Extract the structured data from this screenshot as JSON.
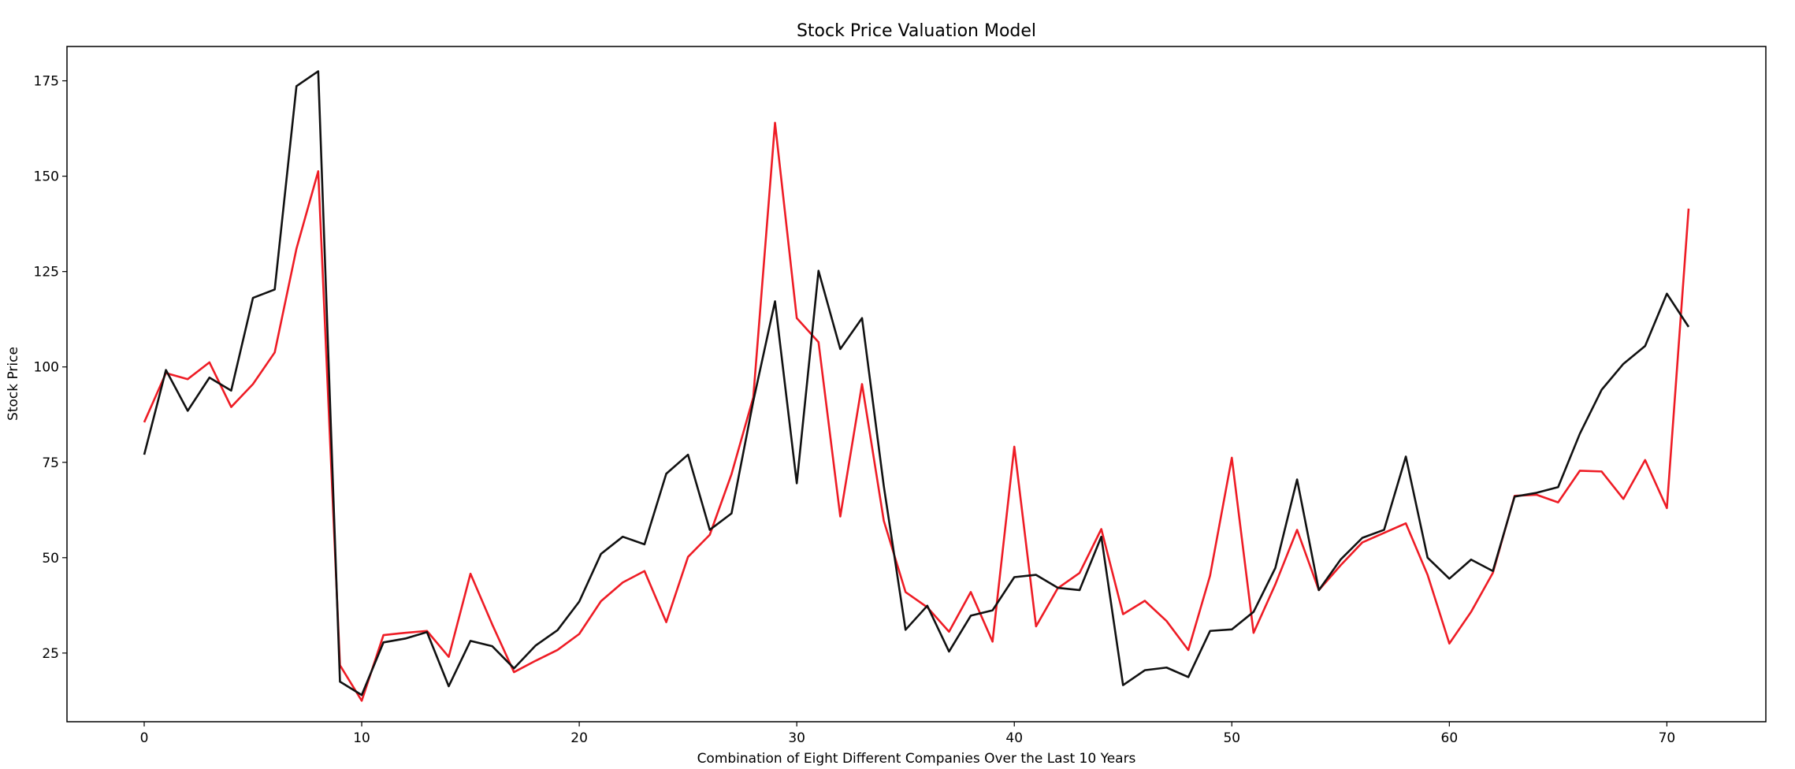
{
  "chart_data": {
    "type": "line",
    "title": "Stock Price Valuation Model",
    "xlabel": "Combination of Eight Different Companies Over the Last 10 Years",
    "ylabel": "Stock Price",
    "xlim": [
      -3.55,
      74.55
    ],
    "ylim": [
      7.0,
      184.0
    ],
    "xticks": [
      0,
      10,
      20,
      30,
      40,
      50,
      60,
      70
    ],
    "yticks": [
      25,
      50,
      75,
      100,
      125,
      150,
      175
    ],
    "grid": false,
    "legend": "none",
    "x": [
      0,
      1,
      2,
      3,
      4,
      5,
      6,
      7,
      8,
      9,
      10,
      11,
      12,
      13,
      14,
      15,
      16,
      17,
      18,
      19,
      20,
      21,
      22,
      23,
      24,
      25,
      26,
      27,
      28,
      29,
      30,
      31,
      32,
      33,
      34,
      35,
      36,
      37,
      38,
      39,
      40,
      41,
      42,
      43,
      44,
      45,
      46,
      47,
      48,
      49,
      50,
      51,
      52,
      53,
      54,
      55,
      56,
      57,
      58,
      59,
      60,
      61,
      62,
      63,
      64,
      65,
      66,
      67,
      68,
      69,
      70,
      71
    ],
    "series": [
      {
        "color": "#ee1c25",
        "values": [
          85.5,
          98.4,
          96.8,
          101.2,
          89.5,
          95.5,
          103.8,
          131.0,
          151.3,
          21.8,
          12.5,
          29.7,
          30.3,
          30.8,
          24.0,
          45.8,
          32.5,
          20.0,
          23.0,
          25.8,
          30.0,
          38.6,
          43.5,
          46.5,
          33.1,
          50.2,
          56.0,
          71.9,
          92.0,
          164.0,
          112.8,
          106.5,
          60.8,
          95.5,
          59.7,
          41.0,
          37.0,
          30.6,
          41.0,
          28.0,
          79.1,
          32.0,
          42.0,
          46.0,
          57.5,
          35.2,
          38.7,
          33.4,
          25.8,
          45.3,
          76.2,
          30.3,
          43.0,
          57.3,
          41.5,
          48.0,
          54.0,
          56.5,
          59.0,
          45.5,
          27.5,
          35.8,
          46.0,
          66.2,
          66.5,
          64.5,
          72.8,
          72.6,
          65.4,
          75.6,
          63.0,
          141.5
        ]
      },
      {
        "color": "#111111",
        "values": [
          77.0,
          99.2,
          88.5,
          97.2,
          93.8,
          118.1,
          120.3,
          173.6,
          177.5,
          17.5,
          14.0,
          27.8,
          28.8,
          30.5,
          16.3,
          28.2,
          26.8,
          21.0,
          27.0,
          31.0,
          38.5,
          51.0,
          55.5,
          53.5,
          72.0,
          77.0,
          57.3,
          61.6,
          91.0,
          117.2,
          69.5,
          125.2,
          104.7,
          112.8,
          68.8,
          31.1,
          37.4,
          25.4,
          34.8,
          36.2,
          44.9,
          45.5,
          42.1,
          41.5,
          55.5,
          16.6,
          20.5,
          21.2,
          18.7,
          30.8,
          31.2,
          35.8,
          47.3,
          70.5,
          41.5,
          49.5,
          55.2,
          57.3,
          76.5,
          50.0,
          44.5,
          49.5,
          46.5,
          66.0,
          67.0,
          68.5,
          82.5,
          94.0,
          100.8,
          105.5,
          119.2,
          110.5
        ]
      }
    ]
  }
}
